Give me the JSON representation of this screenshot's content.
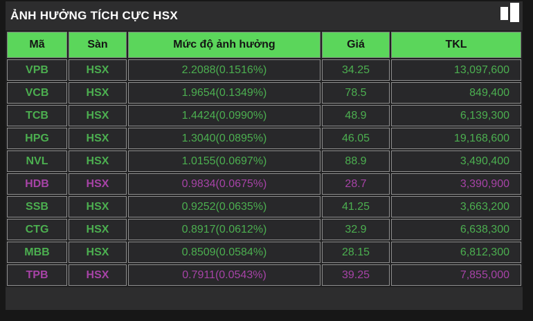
{
  "header": {
    "title": "ẢNH HƯỞNG TÍCH CỰC HSX",
    "icon": "bar-chart-icon"
  },
  "colors": {
    "header_green": "#5bd65b",
    "up_green": "#4caf50",
    "ceiling_purple": "#a743a7",
    "panel_bg": "#2d2d2e",
    "page_bg": "#171717"
  },
  "table": {
    "columns": [
      "Mã",
      "Sàn",
      "Mức độ ảnh hưởng",
      "Giá",
      "TKL"
    ],
    "rows": [
      {
        "code": "VPB",
        "exchange": "HSX",
        "impact": "2.2088(0.1516%)",
        "price": "34.25",
        "volume": "13,097,600",
        "color": "green"
      },
      {
        "code": "VCB",
        "exchange": "HSX",
        "impact": "1.9654(0.1349%)",
        "price": "78.5",
        "volume": "849,400",
        "color": "green"
      },
      {
        "code": "TCB",
        "exchange": "HSX",
        "impact": "1.4424(0.0990%)",
        "price": "48.9",
        "volume": "6,139,300",
        "color": "green"
      },
      {
        "code": "HPG",
        "exchange": "HSX",
        "impact": "1.3040(0.0895%)",
        "price": "46.05",
        "volume": "19,168,600",
        "color": "green"
      },
      {
        "code": "NVL",
        "exchange": "HSX",
        "impact": "1.0155(0.0697%)",
        "price": "88.9",
        "volume": "3,490,400",
        "color": "green"
      },
      {
        "code": "HDB",
        "exchange": "HSX",
        "impact": "0.9834(0.0675%)",
        "price": "28.7",
        "volume": "3,390,900",
        "color": "purple"
      },
      {
        "code": "SSB",
        "exchange": "HSX",
        "impact": "0.9252(0.0635%)",
        "price": "41.25",
        "volume": "3,663,200",
        "color": "green"
      },
      {
        "code": "CTG",
        "exchange": "HSX",
        "impact": "0.8917(0.0612%)",
        "price": "32.9",
        "volume": "6,638,300",
        "color": "green"
      },
      {
        "code": "MBB",
        "exchange": "HSX",
        "impact": "0.8509(0.0584%)",
        "price": "28.15",
        "volume": "6,812,300",
        "color": "green"
      },
      {
        "code": "TPB",
        "exchange": "HSX",
        "impact": "0.7911(0.0543%)",
        "price": "39.25",
        "volume": "7,855,000",
        "color": "purple"
      }
    ]
  }
}
